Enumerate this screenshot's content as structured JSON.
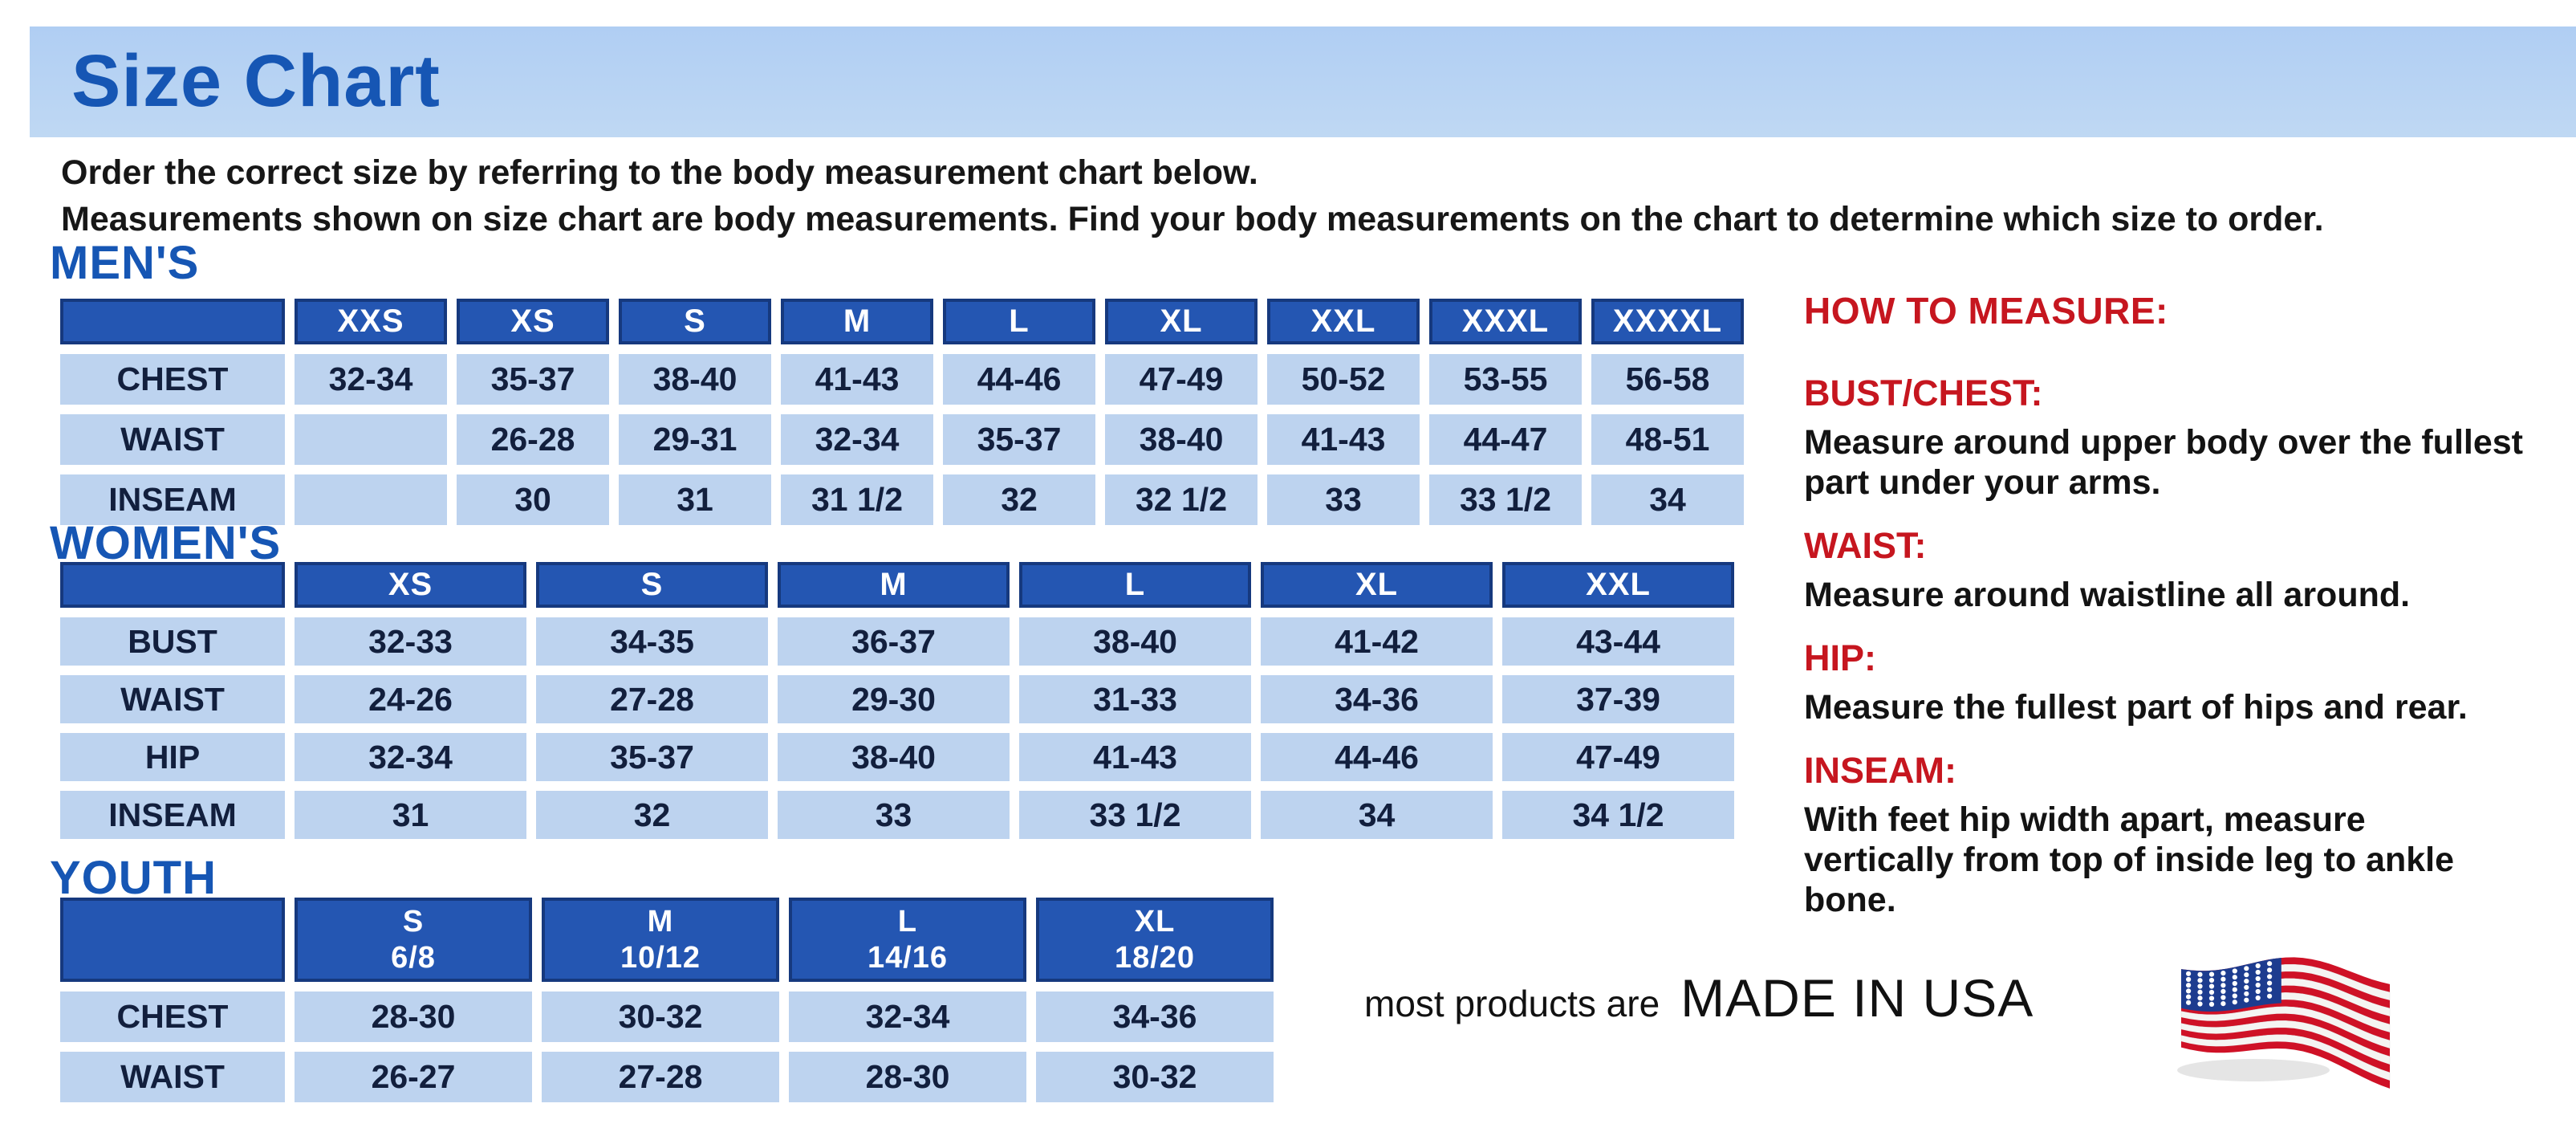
{
  "title": "Size Chart",
  "intro": {
    "line1": "Order the correct size by referring to the body measurement chart below.",
    "line2": "Measurements shown on size chart are body measurements.  Find your body measurements on the chart to determine which size to order."
  },
  "tables": {
    "mens": {
      "section_title": "MEN'S",
      "columns": [
        "XXS",
        "XS",
        "S",
        "M",
        "L",
        "XL",
        "XXL",
        "XXXL",
        "XXXXL"
      ],
      "rows": [
        {
          "label": "CHEST",
          "values": [
            "32-34",
            "35-37",
            "38-40",
            "41-43",
            "44-46",
            "47-49",
            "50-52",
            "53-55",
            "56-58"
          ]
        },
        {
          "label": "WAIST",
          "values": [
            "",
            "26-28",
            "29-31",
            "32-34",
            "35-37",
            "38-40",
            "41-43",
            "44-47",
            "48-51"
          ]
        },
        {
          "label": "INSEAM",
          "values": [
            "",
            "30",
            "31",
            "31 1/2",
            "32",
            "32 1/2",
            "33",
            "33 1/2",
            "34"
          ]
        }
      ]
    },
    "womens": {
      "section_title": "WOMEN'S",
      "columns": [
        "XS",
        "S",
        "M",
        "L",
        "XL",
        "XXL"
      ],
      "rows": [
        {
          "label": "BUST",
          "values": [
            "32-33",
            "34-35",
            "36-37",
            "38-40",
            "41-42",
            "43-44"
          ]
        },
        {
          "label": "WAIST",
          "values": [
            "24-26",
            "27-28",
            "29-30",
            "31-33",
            "34-36",
            "37-39"
          ]
        },
        {
          "label": "HIP",
          "values": [
            "32-34",
            "35-37",
            "38-40",
            "41-43",
            "44-46",
            "47-49"
          ]
        },
        {
          "label": "INSEAM",
          "values": [
            "31",
            "32",
            "33",
            "33 1/2",
            "34",
            "34 1/2"
          ]
        }
      ]
    },
    "youth": {
      "section_title": "YOUTH",
      "columns": [
        "S\n6/8",
        "M\n10/12",
        "L\n14/16",
        "XL\n18/20"
      ],
      "rows": [
        {
          "label": "CHEST",
          "values": [
            "28-30",
            "30-32",
            "32-34",
            "34-36"
          ]
        },
        {
          "label": "WAIST",
          "values": [
            "26-27",
            "27-28",
            "28-30",
            "30-32"
          ]
        }
      ]
    }
  },
  "how_to_measure": {
    "heading": "HOW TO MEASURE:",
    "items": [
      {
        "label": "BUST/CHEST:",
        "text": "Measure around upper body over the fullest part under your arms."
      },
      {
        "label": "WAIST:",
        "text": "Measure around waistline all around."
      },
      {
        "label": "HIP:",
        "text": "Measure the fullest part of hips and rear."
      },
      {
        "label": "INSEAM:",
        "text": "With feet hip width apart, measure vertically from top of inside leg to ankle bone."
      }
    ]
  },
  "footer": {
    "prefix": "most products are",
    "made_in": "MADE IN USA",
    "flag_icon": "us-flag-icon"
  },
  "colors": {
    "banner_blue": "#b8d4f0",
    "accent_blue": "#1656b4",
    "table_header_blue": "#2456b2",
    "table_header_border": "#16397e",
    "cell_light_blue": "#bdd3ef",
    "heading_red": "#c6161f",
    "flag_red": "#cf1126",
    "flag_navy": "#1d3c8f"
  }
}
